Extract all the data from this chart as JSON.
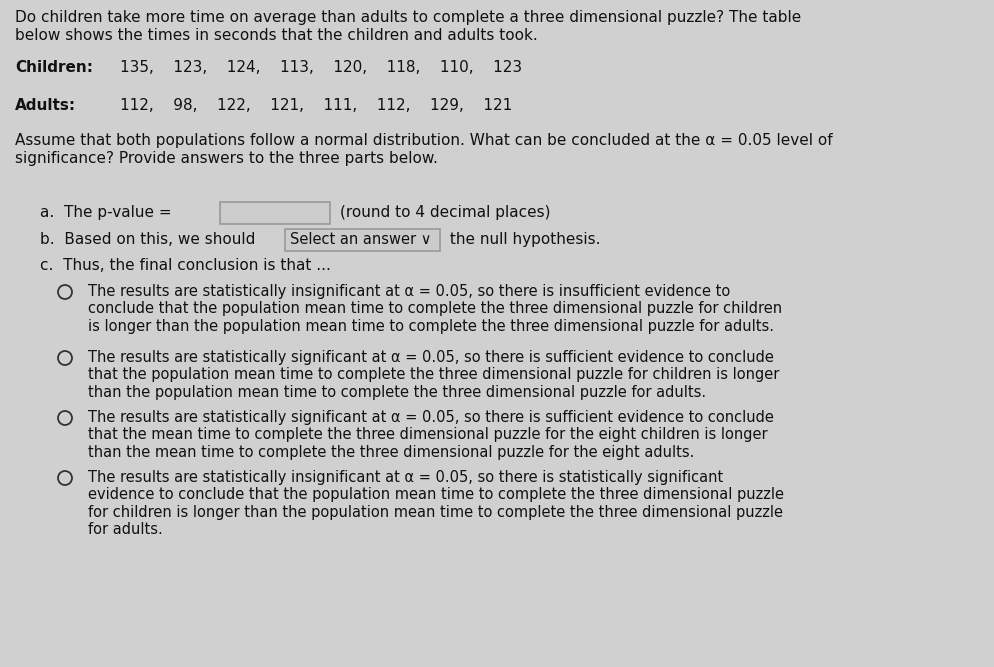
{
  "bg_color": "#d0d0d0",
  "text_color": "#111111",
  "font_family": "DejaVu Sans",
  "intro_line1": "Do children take more time on average than adults to complete a three dimensional puzzle? The table",
  "intro_line2": "below shows the times in seconds that the children and adults took.",
  "children_label": "Children:",
  "children_values": "135,    123,    124,    113,    120,    118,    110,    123",
  "adults_label": "Adults:",
  "adults_values": "112,    98,    122,    121,    111,    112,    129,    121",
  "assume_line1": "Assume that both populations follow a normal distribution. What can be concluded at the α = 0.05 level of",
  "assume_line2": "significance? Provide answers to the three parts below.",
  "part_a_pre": "a.  The p-value = ",
  "part_a_post": "(round to 4 decimal places)",
  "part_b_pre": "b.  Based on this, we should ",
  "part_b_box": "Select an answer ∨",
  "part_b_post": " the null hypothesis.",
  "part_c": "c.  Thus, the final conclusion is that ...",
  "option1_line1": "The results are statistically insignificant at α = 0.05, so there is insufficient evidence to",
  "option1_line2": "conclude that the population mean time to complete the three dimensional puzzle for children",
  "option1_line3": "is longer than the population mean time to complete the three dimensional puzzle for adults.",
  "option2_line1": "The results are statistically significant at α = 0.05, so there is sufficient evidence to conclude",
  "option2_line2": "that the population mean time to complete the three dimensional puzzle for children is longer",
  "option2_line3": "than the population mean time to complete the three dimensional puzzle for adults.",
  "option3_line1": "The results are statistically significant at α = 0.05, so there is sufficient evidence to conclude",
  "option3_line2": "that the mean time to complete the three dimensional puzzle for the eight children is longer",
  "option3_line3": "than the mean time to complete the three dimensional puzzle for the eight adults.",
  "option4_line1": "The results are statistically insignificant at α = 0.05, so there is statistically significant",
  "option4_line2": "evidence to conclude that the population mean time to complete the three dimensional puzzle",
  "option4_line3": "for children is longer than the population mean time to complete the three dimensional puzzle",
  "option4_line4": "for adults.",
  "base_font": 11.0,
  "small_font": 10.5
}
